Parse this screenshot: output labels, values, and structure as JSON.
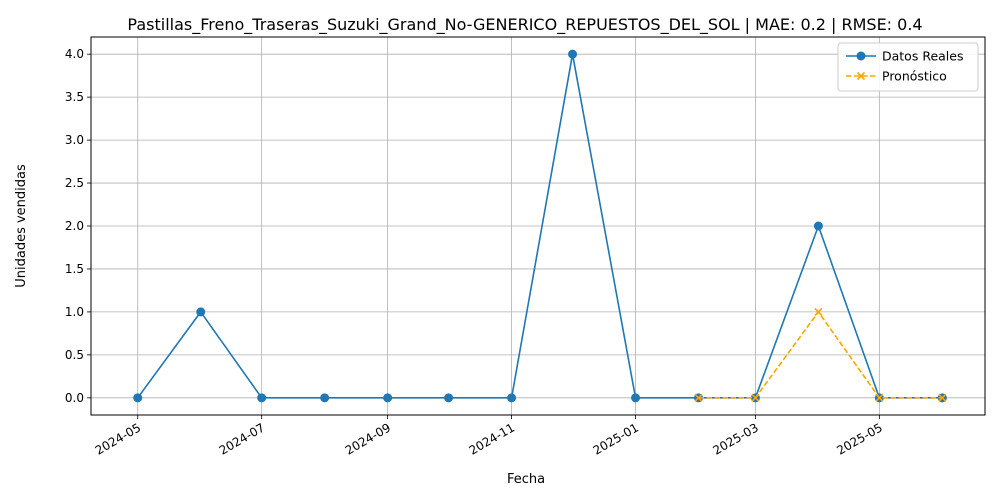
{
  "chart_data": {
    "type": "line",
    "title": "Pastillas_Freno_Traseras_Suzuki_Grand_No-GENERICO_REPUESTOS_DEL_SOL | MAE: 0.2 | RMSE: 0.4",
    "xlabel": "Fecha",
    "ylabel": "Unidades vendidas",
    "x_type": "date",
    "xlim": [
      "2024-04-08",
      "2025-06-22"
    ],
    "ylim": [
      -0.2,
      4.2
    ],
    "x_ticks": [
      "2024-05",
      "2024-07",
      "2024-09",
      "2024-11",
      "2025-01",
      "2025-03",
      "2025-05"
    ],
    "y_ticks": [
      "0.0",
      "0.5",
      "1.0",
      "1.5",
      "2.0",
      "2.5",
      "3.0",
      "3.5",
      "4.0"
    ],
    "grid": true,
    "legend_position": "top-right",
    "series": [
      {
        "name": "Datos Reales",
        "color": "#1f77b4",
        "line_style": "solid",
        "marker": "circle",
        "x": [
          "2024-05-01",
          "2024-06-01",
          "2024-07-01",
          "2024-08-01",
          "2024-09-01",
          "2024-10-01",
          "2024-11-01",
          "2024-12-01",
          "2025-01-01",
          "2025-02-01",
          "2025-03-01",
          "2025-04-01",
          "2025-05-01",
          "2025-06-01"
        ],
        "values": [
          0,
          1,
          0,
          0,
          0,
          0,
          0,
          4,
          0,
          0,
          0,
          2,
          0,
          0
        ]
      },
      {
        "name": "Pronóstico",
        "color": "#ffa500",
        "line_style": "dashed",
        "marker": "x",
        "x": [
          "2025-02-01",
          "2025-03-01",
          "2025-04-01",
          "2025-05-01",
          "2025-06-01"
        ],
        "values": [
          0,
          0,
          1,
          0,
          0
        ]
      }
    ]
  }
}
